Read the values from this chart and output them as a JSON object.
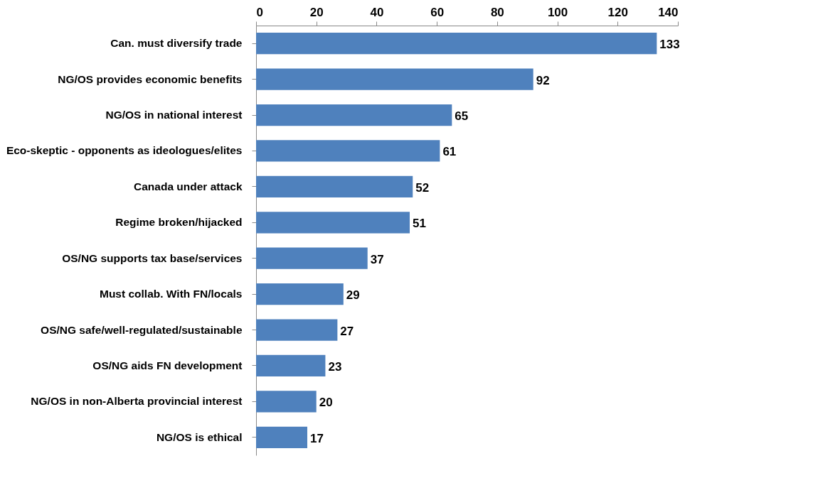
{
  "chart_data": {
    "type": "bar",
    "orientation": "horizontal",
    "categories": [
      "Can. must diversify trade",
      "NG/OS provides economic benefits",
      "NG/OS in national interest",
      "Eco-skeptic - opponents as ideologues/elites",
      "Canada under attack",
      "Regime broken/hijacked",
      "OS/NG supports tax base/services",
      "Must collab. With FN/locals",
      "OS/NG safe/well-regulated/sustainable",
      "OS/NG aids FN development",
      "NG/OS in non-Alberta provincial interest",
      "NG/OS is ethical"
    ],
    "values": [
      133,
      92,
      65,
      61,
      52,
      51,
      37,
      29,
      27,
      23,
      20,
      17
    ],
    "color": "#4f81bd",
    "xlim": [
      0,
      140
    ],
    "xticks": [
      0,
      20,
      40,
      60,
      80,
      100,
      120,
      140
    ],
    "data_labels": true
  }
}
